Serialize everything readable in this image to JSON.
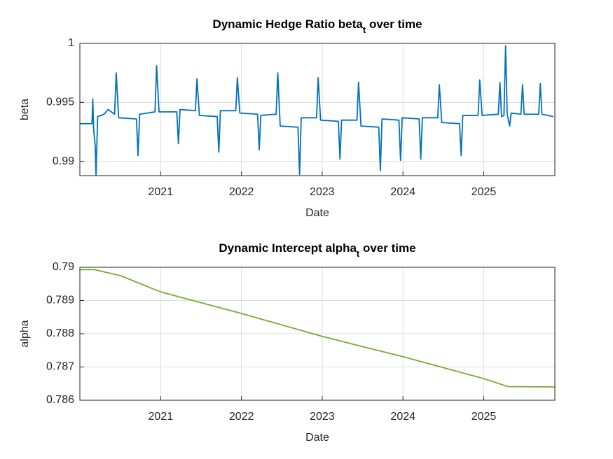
{
  "chart_data": [
    {
      "type": "line",
      "title": [
        "Dynamic Hedge Ratio beta",
        "t",
        " over time"
      ],
      "xlabel": "Date",
      "ylabel": "beta",
      "color": "#0072bd",
      "grid": true,
      "xlim": [
        2020.0,
        2025.88
      ],
      "xticks": [
        2021,
        2022,
        2023,
        2024,
        2025
      ],
      "ylim": [
        0.9888,
        1.0
      ],
      "yticks": [
        0.99,
        0.995,
        1
      ],
      "x": [
        2020.0,
        2020.15,
        2020.16,
        2020.17,
        2020.19,
        2020.2,
        2020.22,
        2020.3,
        2020.35,
        2020.43,
        2020.45,
        2020.48,
        2020.7,
        2020.72,
        2020.74,
        2020.93,
        2020.95,
        2020.98,
        2021.2,
        2021.22,
        2021.24,
        2021.43,
        2021.45,
        2021.48,
        2021.7,
        2021.72,
        2021.74,
        2021.93,
        2021.95,
        2021.98,
        2022.2,
        2022.22,
        2022.24,
        2022.43,
        2022.45,
        2022.48,
        2022.7,
        2022.72,
        2022.74,
        2022.93,
        2022.95,
        2022.98,
        2023.2,
        2023.22,
        2023.24,
        2023.43,
        2023.45,
        2023.48,
        2023.7,
        2023.72,
        2023.74,
        2023.95,
        2023.97,
        2023.99,
        2024.2,
        2024.22,
        2024.24,
        2024.43,
        2024.45,
        2024.48,
        2024.7,
        2024.72,
        2024.74,
        2024.93,
        2024.95,
        2024.98,
        2025.18,
        2025.2,
        2025.22,
        2025.25,
        2025.27,
        2025.29,
        2025.32,
        2025.34,
        2025.46,
        2025.48,
        2025.5,
        2025.68,
        2025.7,
        2025.72,
        2025.86
      ],
      "values": [
        0.9932,
        0.9932,
        0.9953,
        0.9928,
        0.9913,
        0.9888,
        0.9938,
        0.994,
        0.9944,
        0.994,
        0.9975,
        0.9937,
        0.9936,
        0.9905,
        0.994,
        0.9942,
        0.9981,
        0.9942,
        0.9942,
        0.9915,
        0.9944,
        0.9943,
        0.997,
        0.9939,
        0.9938,
        0.9908,
        0.9943,
        0.9943,
        0.9971,
        0.9941,
        0.994,
        0.991,
        0.9939,
        0.994,
        0.9975,
        0.993,
        0.9929,
        0.9889,
        0.9937,
        0.9937,
        0.9971,
        0.9935,
        0.9934,
        0.9902,
        0.9935,
        0.9935,
        0.9967,
        0.993,
        0.9929,
        0.9892,
        0.9936,
        0.9935,
        0.9901,
        0.9937,
        0.9936,
        0.9902,
        0.9937,
        0.9937,
        0.9965,
        0.9933,
        0.9932,
        0.9905,
        0.9939,
        0.9939,
        0.9969,
        0.9939,
        0.994,
        0.9967,
        0.9938,
        0.9939,
        0.9998,
        0.994,
        0.993,
        0.9941,
        0.994,
        0.9965,
        0.994,
        0.994,
        0.9966,
        0.994,
        0.9938
      ]
    },
    {
      "type": "line",
      "title": [
        "Dynamic Intercept alpha",
        "t",
        " over time"
      ],
      "xlabel": "Date",
      "ylabel": "alpha",
      "color": "#77ac30",
      "grid": true,
      "xlim": [
        2020.0,
        2025.88
      ],
      "xticks": [
        2021,
        2022,
        2023,
        2024,
        2025
      ],
      "ylim": [
        0.786,
        0.79
      ],
      "yticks": [
        0.786,
        0.787,
        0.788,
        0.789,
        0.79
      ],
      "x": [
        2020.0,
        2020.18,
        2020.5,
        2021,
        2022,
        2023,
        2024,
        2025,
        2025.3,
        2025.88
      ],
      "values": [
        0.78993,
        0.78993,
        0.78975,
        0.78926,
        0.78861,
        0.78792,
        0.78731,
        0.78665,
        0.78641,
        0.7864
      ]
    }
  ]
}
